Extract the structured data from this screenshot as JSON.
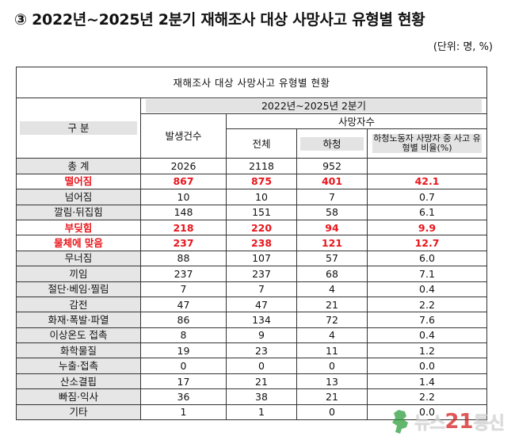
{
  "title": "③ 2022년~2025년 2분기 재해조사 대상 사망사고 유형별 현황",
  "unit": "(단위: 명, %)",
  "table": {
    "caption": "재해조사 대상 사망사고 유형별 현황",
    "period": "2022년~2025년 2분기",
    "header_category": "구 분",
    "header_occurrences": "발생건수",
    "header_deaths": "사망자수",
    "header_total": "전체",
    "header_subcontract": "하청",
    "header_ratio": "하청노동자 사망자 중 사고 유형별 비율(%)",
    "rows": [
      {
        "category": "총 계",
        "occurrences": "2026",
        "total": "2118",
        "subcontract": "952",
        "ratio": "",
        "highlight": false
      },
      {
        "category": "떨어짐",
        "occurrences": "867",
        "total": "875",
        "subcontract": "401",
        "ratio": "42.1",
        "highlight": true
      },
      {
        "category": "넘어짐",
        "occurrences": "10",
        "total": "10",
        "subcontract": "7",
        "ratio": "0.7",
        "highlight": false
      },
      {
        "category": "깔림·뒤집힘",
        "occurrences": "148",
        "total": "151",
        "subcontract": "58",
        "ratio": "6.1",
        "highlight": false
      },
      {
        "category": "부딪힘",
        "occurrences": "218",
        "total": "220",
        "subcontract": "94",
        "ratio": "9.9",
        "highlight": true
      },
      {
        "category": "물체에 맞음",
        "occurrences": "237",
        "total": "238",
        "subcontract": "121",
        "ratio": "12.7",
        "highlight": true
      },
      {
        "category": "무너짐",
        "occurrences": "88",
        "total": "107",
        "subcontract": "57",
        "ratio": "6.0",
        "highlight": false
      },
      {
        "category": "끼임",
        "occurrences": "237",
        "total": "237",
        "subcontract": "68",
        "ratio": "7.1",
        "highlight": false
      },
      {
        "category": "절단·베임·찔림",
        "occurrences": "7",
        "total": "7",
        "subcontract": "4",
        "ratio": "0.4",
        "highlight": false
      },
      {
        "category": "감전",
        "occurrences": "47",
        "total": "47",
        "subcontract": "21",
        "ratio": "2.2",
        "highlight": false
      },
      {
        "category": "화재·폭발·파열",
        "occurrences": "86",
        "total": "134",
        "subcontract": "72",
        "ratio": "7.6",
        "highlight": false
      },
      {
        "category": "이상온도 접촉",
        "occurrences": "8",
        "total": "9",
        "subcontract": "4",
        "ratio": "0.4",
        "highlight": false
      },
      {
        "category": "화학물질",
        "occurrences": "19",
        "total": "23",
        "subcontract": "11",
        "ratio": "1.2",
        "highlight": false
      },
      {
        "category": "누출·접촉",
        "occurrences": "0",
        "total": "0",
        "subcontract": "0",
        "ratio": "0.0",
        "highlight": false
      },
      {
        "category": "산소결핍",
        "occurrences": "17",
        "total": "21",
        "subcontract": "13",
        "ratio": "1.4",
        "highlight": false
      },
      {
        "category": "빠짐·익사",
        "occurrences": "36",
        "total": "38",
        "subcontract": "21",
        "ratio": "2.2",
        "highlight": false
      },
      {
        "category": "기타",
        "occurrences": "1",
        "total": "1",
        "subcontract": "0",
        "ratio": "0.0",
        "highlight": false
      }
    ]
  },
  "logo": {
    "part1": "뉴스",
    "number": "21",
    "part2": "통신"
  }
}
